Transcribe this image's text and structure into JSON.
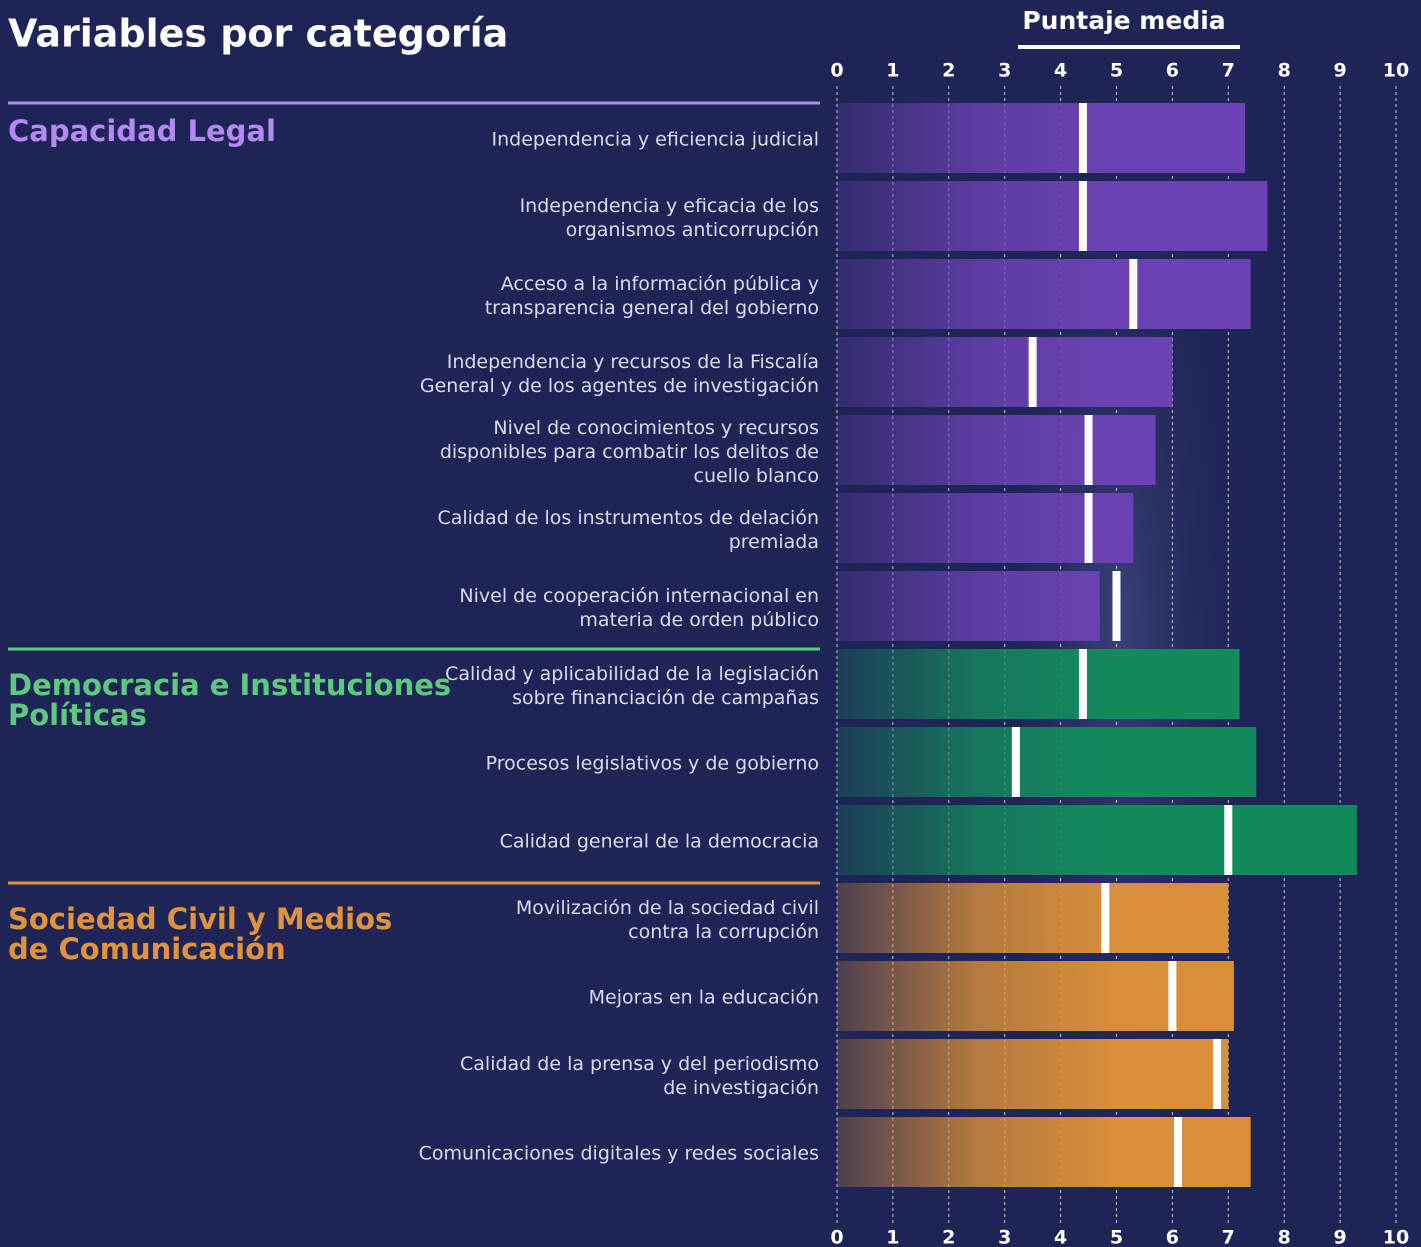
{
  "chart_data": {
    "type": "bar",
    "title": "Variables por categoría",
    "axis_title": "Puntaje media",
    "xlim": [
      0,
      10
    ],
    "xticks": [
      0,
      1,
      2,
      3,
      4,
      5,
      6,
      7,
      8,
      9,
      10
    ],
    "grid": true,
    "groups": [
      {
        "name": "Capacidad Legal",
        "color": "#6b42b3",
        "title_color": "#b38af2",
        "items": [
          {
            "label": "Independencia y eficiencia judicial",
            "value": 7.3,
            "marker": 4.4
          },
          {
            "label": "Independencia y eficacia de los\norganismos anticorrupción",
            "value": 7.7,
            "marker": 4.4
          },
          {
            "label": "Acceso a la información pública y\ntransparencia general del gobierno",
            "value": 7.4,
            "marker": 5.3
          },
          {
            "label": "Independencia y recursos de la Fiscalía\nGeneral y de los agentes de investigación",
            "value": 6.0,
            "marker": 3.5
          },
          {
            "label": "Nivel de conocimientos y recursos\ndisponibles para combatir los delitos de\ncuello blanco",
            "value": 5.7,
            "marker": 4.5
          },
          {
            "label": "Calidad de los instrumentos de delación\npremiada",
            "value": 5.3,
            "marker": 4.5
          },
          {
            "label": "Nivel de cooperación internacional en\nmateria de orden público",
            "value": 4.7,
            "marker": 5.0
          }
        ]
      },
      {
        "name": "Democracia e Instituciones\nPolíticas",
        "color": "#138a5c",
        "title_color": "#5dc97f",
        "items": [
          {
            "label": "Calidad y aplicabilidad de la legislación\nsobre financiación de campañas",
            "value": 7.2,
            "marker": 4.4
          },
          {
            "label": "Procesos legislativos y de gobierno",
            "value": 7.5,
            "marker": 3.2
          },
          {
            "label": "Calidad general de la democracia",
            "value": 9.3,
            "marker": 7.0
          }
        ]
      },
      {
        "name": "Sociedad Civil y Medios\nde Comunicación",
        "color": "#d98f3a",
        "title_color": "#e0933a",
        "items": [
          {
            "label": "Movilización de la sociedad civil\ncontra la corrupción",
            "value": 7.0,
            "marker": 4.8
          },
          {
            "label": "Mejoras en la educación",
            "value": 7.1,
            "marker": 6.0
          },
          {
            "label": "Calidad de la prensa y del periodismo\nde investigación",
            "value": 7.0,
            "marker": 6.8
          },
          {
            "label": "Comunicaciones digitales y redes sociales",
            "value": 7.4,
            "marker": 6.1
          }
        ]
      }
    ]
  }
}
